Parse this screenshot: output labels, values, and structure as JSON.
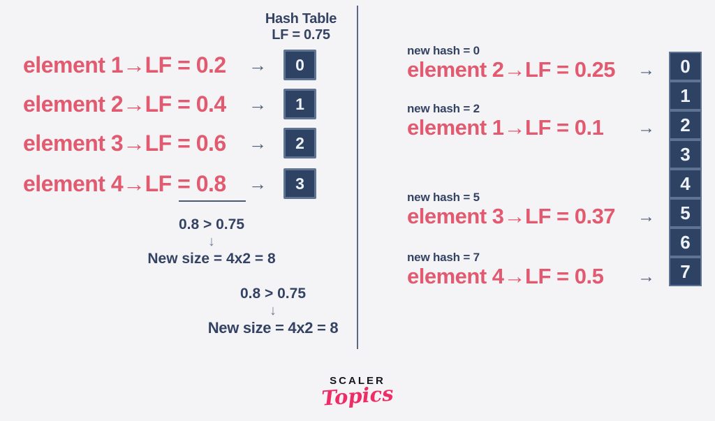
{
  "glyphs": {
    "right_arrow": "→",
    "down_arrow": "↓"
  },
  "colors": {
    "background": "#f4f4f6",
    "accent_pink": "#e25a70",
    "navy_text": "#344363",
    "box_fill": "#2e4363",
    "box_border": "#5f7392",
    "logo_pink": "#ee2d67"
  },
  "left": {
    "title_line1": "Hash Table",
    "title_line2": "LF = 0.75",
    "rows": [
      {
        "text": "element 1→LF = 0.2",
        "cell": "0"
      },
      {
        "text": "element 2→LF = 0.4",
        "cell": "1"
      },
      {
        "text": "element 3→LF = 0.6",
        "cell": "2"
      },
      {
        "text": "element 4→LF = 0.8",
        "cell": "3"
      }
    ],
    "calc1": {
      "condition": "0.8 > 0.75",
      "result": "New size = 4x2 = 8"
    },
    "calc2": {
      "condition": "0.8 > 0.75",
      "result": "New size = 4x2 = 8"
    }
  },
  "right": {
    "rows": [
      {
        "hash_label": "new hash = 0",
        "text": "element 2→LF = 0.25"
      },
      {
        "hash_label": "new hash = 2",
        "text": "element 1→LF = 0.1"
      },
      {
        "hash_label": "new hash = 5",
        "text": "element 3→LF = 0.37"
      },
      {
        "hash_label": "new hash = 7",
        "text": "element 4→LF = 0.5"
      }
    ],
    "cells": [
      "0",
      "1",
      "2",
      "3",
      "4",
      "5",
      "6",
      "7"
    ]
  },
  "logo": {
    "brand": "SCALER",
    "word": "Topics"
  }
}
